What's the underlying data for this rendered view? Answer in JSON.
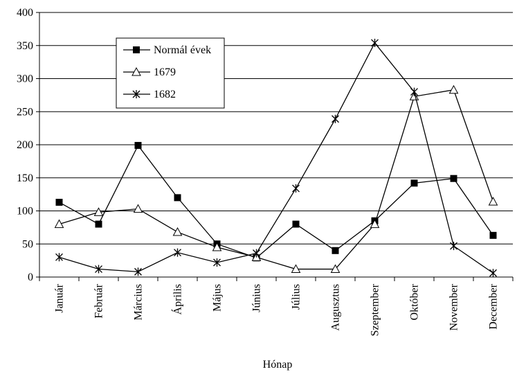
{
  "chart_data": {
    "type": "line",
    "title": "",
    "xlabel": "Hónap",
    "ylabel": "",
    "ylim": [
      0,
      400
    ],
    "yticks": [
      0,
      50,
      100,
      150,
      200,
      250,
      300,
      350,
      400
    ],
    "grid": "horizontal",
    "legend_position": "top-left",
    "categories": [
      "Január",
      "Február",
      "Március",
      "Április",
      "Május",
      "Június",
      "Július",
      "Augusztus",
      "Szeptember",
      "Október",
      "November",
      "December"
    ],
    "series": [
      {
        "name": "Normál évek",
        "marker": "filled-square",
        "values": [
          113,
          80,
          199,
          120,
          50,
          29,
          80,
          40,
          85,
          142,
          149,
          63
        ]
      },
      {
        "name": "1679",
        "marker": "open-triangle",
        "values": [
          80,
          98,
          103,
          68,
          45,
          30,
          12,
          12,
          80,
          273,
          283,
          114
        ]
      },
      {
        "name": "1682",
        "marker": "star",
        "values": [
          30,
          12,
          8,
          37,
          22,
          36,
          134,
          239,
          354,
          280,
          47,
          6
        ]
      }
    ]
  }
}
